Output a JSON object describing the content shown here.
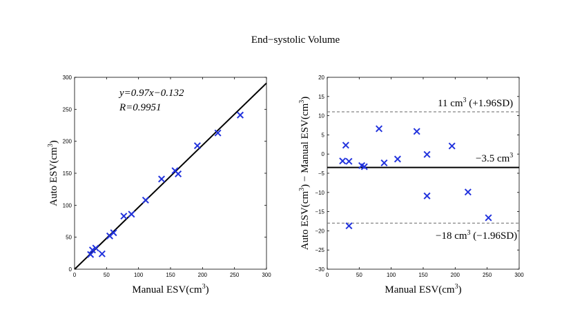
{
  "title": "End−systolic Volume",
  "chart_data": [
    {
      "type": "scatter",
      "name": "correlation",
      "xlabel": "Manual ESV(cm",
      "xlabel_sup": "3",
      "xlabel_end": ")",
      "ylabel": "Auto ESV(cm",
      "ylabel_sup": "3",
      "ylabel_end": ")",
      "xlim": [
        0,
        300
      ],
      "ylim": [
        0,
        300
      ],
      "xticks": [
        0,
        50,
        100,
        150,
        200,
        250,
        300
      ],
      "yticks": [
        0,
        50,
        100,
        150,
        200,
        250,
        300
      ],
      "points": [
        [
          25,
          23
        ],
        [
          28,
          30
        ],
        [
          33,
          33
        ],
        [
          43,
          24
        ],
        [
          55,
          52
        ],
        [
          61,
          57
        ],
        [
          77,
          83
        ],
        [
          89,
          86
        ],
        [
          111,
          108
        ],
        [
          136,
          141
        ],
        [
          157,
          154
        ],
        [
          162,
          149
        ],
        [
          192,
          193
        ],
        [
          224,
          213
        ],
        [
          259,
          241
        ]
      ],
      "fit_line": {
        "slope": 0.97,
        "intercept": -0.132,
        "x_range": [
          0,
          300
        ]
      },
      "annotation_eq": "y=0.97x−0.132",
      "annotation_r": "R=0.9951"
    },
    {
      "type": "scatter",
      "name": "bland-altman",
      "xlabel": "Manual ESV(cm",
      "xlabel_sup": "3",
      "xlabel_end": ")",
      "ylabel": "Auto ESV(cm",
      "ylabel_sup": "3",
      "ylabel_mid": ") − Manual ESV(cm",
      "ylabel_sup2": "3",
      "ylabel_end": ")",
      "xlim": [
        0,
        300
      ],
      "ylim": [
        -30,
        20
      ],
      "xticks": [
        0,
        50,
        100,
        150,
        200,
        250,
        300
      ],
      "yticks": [
        -30,
        -25,
        -20,
        -15,
        -10,
        -5,
        0,
        5,
        10,
        15,
        20
      ],
      "points": [
        [
          24,
          -1.8
        ],
        [
          29,
          2.3
        ],
        [
          34,
          -1.9
        ],
        [
          34,
          -18.7
        ],
        [
          54,
          -3.0
        ],
        [
          58,
          -3.3
        ],
        [
          81,
          6.6
        ],
        [
          89,
          -2.3
        ],
        [
          110,
          -1.3
        ],
        [
          140,
          5.9
        ],
        [
          156,
          -0.1
        ],
        [
          156,
          -10.9
        ],
        [
          195,
          2.1
        ],
        [
          220,
          -9.9
        ],
        [
          252,
          -16.6
        ]
      ],
      "mean_line": -3.5,
      "upper_limit": 11,
      "lower_limit": -18,
      "mean_label": "−3.5 cm",
      "mean_label_sup": "3",
      "upper_label": "11 cm",
      "upper_label_sup": "3",
      "upper_label_end": " (+1.96SD)",
      "lower_label": "−18 cm",
      "lower_label_sup": "3",
      "lower_label_end": " (−1.96SD)"
    }
  ]
}
